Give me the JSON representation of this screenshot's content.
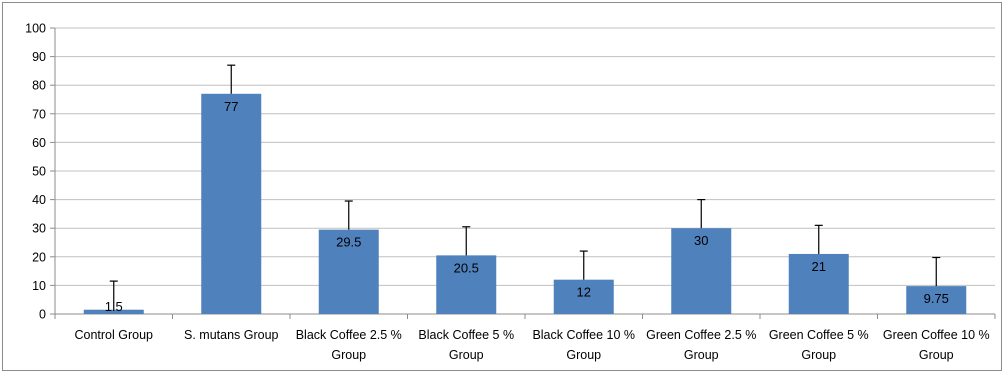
{
  "chart_data": {
    "type": "bar",
    "title": "",
    "xlabel": "",
    "ylabel": "",
    "ylim": [
      0,
      100
    ],
    "yticks": [
      0,
      10,
      20,
      30,
      40,
      50,
      60,
      70,
      80,
      90,
      100
    ],
    "grid": true,
    "legend": "none",
    "bar_color": "#4f81bd",
    "categories": [
      [
        "Control Group"
      ],
      [
        "S. mutans Group"
      ],
      [
        "Black Coffee 2.5 %",
        "Group"
      ],
      [
        "Black Coffee 5 %",
        "Group"
      ],
      [
        "Black Coffee 10 %",
        "Group"
      ],
      [
        "Green Coffee 2.5 %",
        "Group"
      ],
      [
        "Green Coffee 5 %",
        "Group"
      ],
      [
        "Green Coffee 10 %",
        "Group"
      ]
    ],
    "values": [
      1.5,
      77,
      29.5,
      20.5,
      12,
      30,
      21,
      9.75
    ],
    "data_labels": [
      "1.5",
      "77",
      "29.5",
      "20.5",
      "12",
      "30",
      "21",
      "9.75"
    ],
    "error_plus": [
      10,
      10,
      10,
      10,
      10,
      10,
      10,
      10
    ]
  }
}
